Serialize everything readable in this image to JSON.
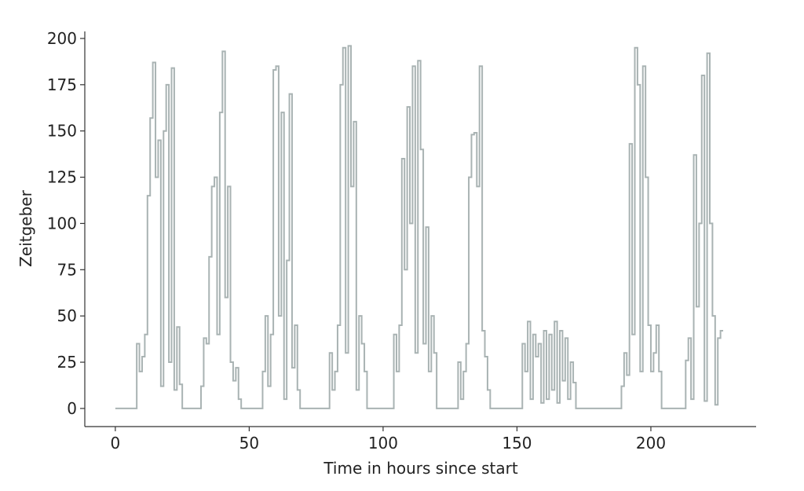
{
  "chart_data": {
    "type": "line",
    "xlabel": "Time in hours since start",
    "ylabel": "Zeitgeber",
    "step": true,
    "x": [
      0,
      8,
      9,
      10,
      11,
      12,
      13,
      14,
      15,
      16,
      17,
      18,
      19,
      20,
      21,
      22,
      23,
      24,
      25,
      32,
      33,
      34,
      35,
      36,
      37,
      38,
      39,
      40,
      41,
      42,
      43,
      44,
      45,
      46,
      47,
      55,
      56,
      57,
      58,
      59,
      60,
      61,
      62,
      63,
      64,
      65,
      66,
      67,
      68,
      69,
      80,
      81,
      82,
      83,
      84,
      85,
      86,
      87,
      88,
      89,
      90,
      91,
      92,
      93,
      94,
      104,
      105,
      106,
      107,
      108,
      109,
      110,
      111,
      112,
      113,
      114,
      115,
      116,
      117,
      118,
      119,
      120,
      128,
      129,
      130,
      131,
      132,
      133,
      134,
      135,
      136,
      137,
      138,
      139,
      140,
      152,
      153,
      154,
      155,
      156,
      157,
      158,
      159,
      160,
      161,
      162,
      163,
      164,
      165,
      166,
      167,
      168,
      169,
      170,
      171,
      172,
      189,
      190,
      191,
      192,
      193,
      194,
      195,
      196,
      197,
      198,
      199,
      200,
      201,
      202,
      203,
      204,
      213,
      214,
      215,
      216,
      217,
      218,
      219,
      220,
      221,
      222,
      223,
      224,
      225,
      226,
      227
    ],
    "series": [
      {
        "color": "#a9b3b3",
        "values": [
          0,
          35,
          20,
          28,
          40,
          115,
          157,
          187,
          125,
          145,
          12,
          150,
          175,
          25,
          184,
          10,
          44,
          13,
          0,
          12,
          38,
          35,
          82,
          120,
          125,
          40,
          160,
          193,
          60,
          120,
          25,
          15,
          22,
          5,
          0,
          20,
          50,
          12,
          40,
          183,
          185,
          50,
          160,
          5,
          80,
          170,
          22,
          45,
          10,
          0,
          30,
          10,
          20,
          45,
          175,
          195,
          30,
          196,
          120,
          155,
          10,
          50,
          35,
          20,
          0,
          40,
          20,
          45,
          135,
          75,
          163,
          100,
          185,
          30,
          188,
          140,
          35,
          98,
          20,
          50,
          30,
          0,
          25,
          5,
          20,
          35,
          125,
          148,
          149,
          120,
          185,
          42,
          28,
          10,
          0,
          35,
          20,
          47,
          5,
          40,
          28,
          35,
          3,
          42,
          5,
          40,
          10,
          47,
          3,
          42,
          15,
          38,
          5,
          25,
          14,
          0,
          12,
          30,
          18,
          143,
          40,
          195,
          175,
          20,
          185,
          125,
          45,
          20,
          30,
          45,
          20,
          0,
          26,
          38,
          5,
          137,
          55,
          100,
          180,
          4,
          192,
          100,
          50,
          2,
          38,
          42,
          42
        ]
      }
    ],
    "xlim": [
      -11.4,
      239.3
    ],
    "ylim": [
      -9.8,
      203.8
    ],
    "xticks": [
      0,
      50,
      100,
      150,
      200
    ],
    "yticks": [
      0,
      25,
      50,
      75,
      100,
      125,
      150,
      175,
      200
    ]
  }
}
